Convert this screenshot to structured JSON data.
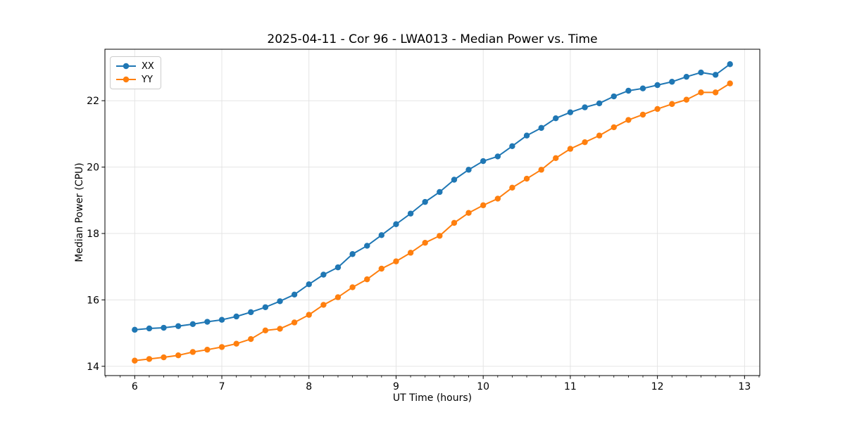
{
  "chart_data": {
    "type": "line",
    "title": "2025-04-11 - Cor 96 - LWA013 - Median Power vs. Time",
    "xlabel": "UT Time (hours)",
    "ylabel": "Median Power (CPU)",
    "xlim": [
      5.658,
      13.175
    ],
    "ylim": [
      13.72,
      23.55
    ],
    "xticks": [
      6,
      7,
      8,
      9,
      10,
      11,
      12,
      13
    ],
    "yticks": [
      14,
      16,
      18,
      20,
      22
    ],
    "x_minor_divisions": 6,
    "grid": true,
    "grid_color": "#e2e2e2",
    "legend_position": "upper left",
    "x": [
      6.0,
      6.167,
      6.333,
      6.5,
      6.667,
      6.833,
      7.0,
      7.167,
      7.333,
      7.5,
      7.667,
      7.833,
      8.0,
      8.167,
      8.333,
      8.5,
      8.667,
      8.833,
      9.0,
      9.167,
      9.333,
      9.5,
      9.667,
      9.833,
      10.0,
      10.167,
      10.333,
      10.5,
      10.667,
      10.833,
      11.0,
      11.167,
      11.333,
      11.5,
      11.667,
      11.833,
      12.0,
      12.167,
      12.333,
      12.5,
      12.667,
      12.833
    ],
    "series": [
      {
        "name": "XX",
        "color": "#1f77b4",
        "values": [
          15.1,
          15.14,
          15.16,
          15.21,
          15.27,
          15.34,
          15.4,
          15.5,
          15.63,
          15.78,
          15.96,
          16.16,
          16.47,
          16.76,
          16.98,
          17.38,
          17.63,
          17.95,
          18.28,
          18.6,
          18.95,
          19.25,
          19.62,
          19.92,
          20.18,
          20.32,
          20.63,
          20.95,
          21.18,
          21.47,
          21.65,
          21.8,
          21.92,
          22.13,
          22.3,
          22.37,
          22.47,
          22.57,
          22.72,
          22.85,
          22.78,
          23.1
        ]
      },
      {
        "name": "YY",
        "color": "#ff7f0e",
        "values": [
          14.17,
          14.22,
          14.27,
          14.33,
          14.43,
          14.5,
          14.58,
          14.68,
          14.82,
          15.08,
          15.13,
          15.32,
          15.55,
          15.85,
          16.08,
          16.38,
          16.62,
          16.94,
          17.16,
          17.42,
          17.72,
          17.93,
          18.32,
          18.62,
          18.85,
          19.05,
          19.38,
          19.65,
          19.92,
          20.27,
          20.55,
          20.75,
          20.95,
          21.2,
          21.42,
          21.58,
          21.75,
          21.9,
          22.03,
          22.25,
          22.25,
          22.52
        ]
      }
    ]
  }
}
